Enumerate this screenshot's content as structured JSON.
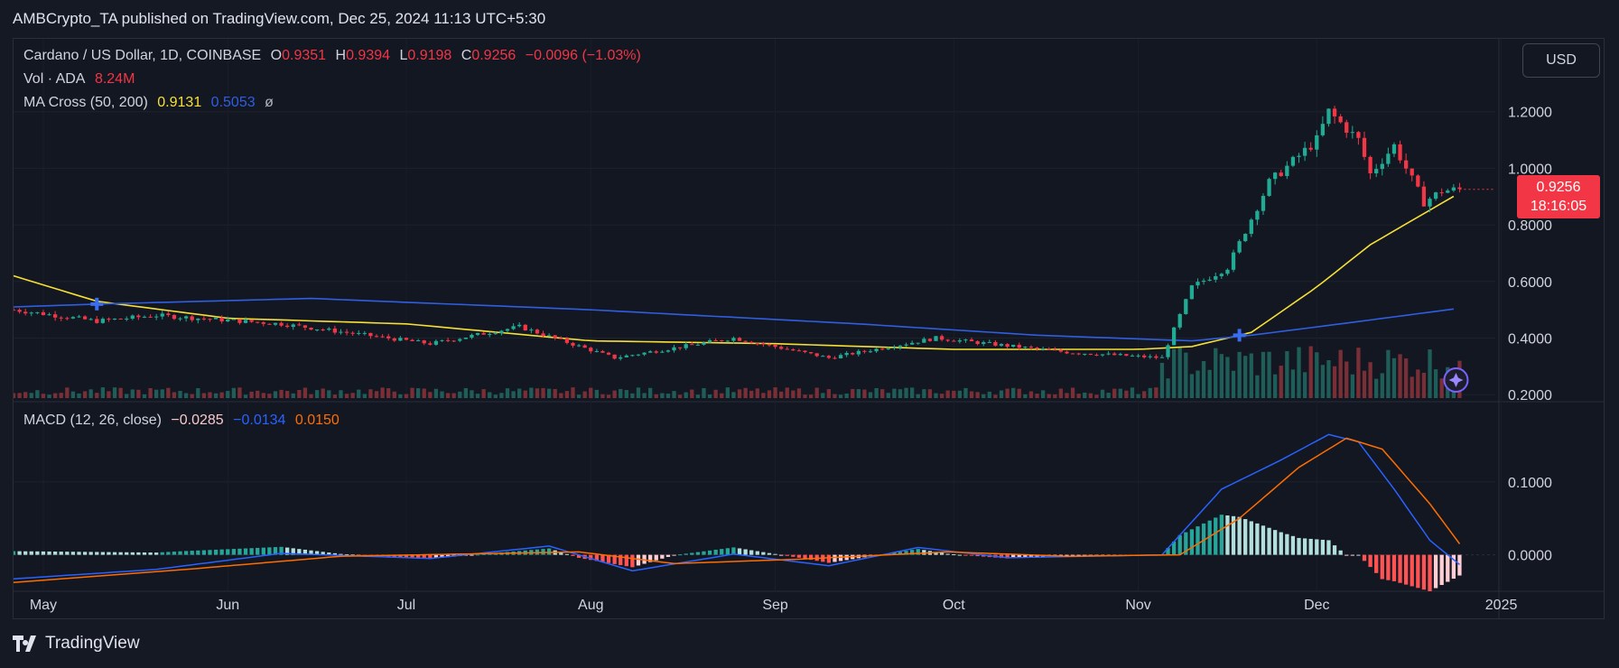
{
  "publisher_line": "AMBCrypto_TA published on TradingView.com, Dec 25, 2024 11:13 UTC+5:30",
  "header": {
    "symbol": "Cardano / US Dollar, 1D, COINBASE",
    "o_label": "O",
    "o_value": "0.9351",
    "h_label": "H",
    "h_value": "0.9394",
    "l_label": "L",
    "l_value": "0.9198",
    "c_label": "C",
    "c_value": "0.9256",
    "change": "−0.0096 (−1.03%)"
  },
  "volume_legend": {
    "label": "Vol · ADA",
    "value": "8.24M"
  },
  "ma_legend": {
    "label": "MA Cross (50, 200)",
    "ma50": "0.9131",
    "ma200": "0.5053",
    "symbol": "ø"
  },
  "macd_legend": {
    "label": "MACD (12, 26, close)",
    "hist": "−0.0285",
    "macd": "−0.0134",
    "signal": "0.0150"
  },
  "currency_button": "USD",
  "last_price": {
    "price": "0.9256",
    "countdown": "18:16:05"
  },
  "colors": {
    "up": "#22ab94",
    "down": "#f23645",
    "ma50": "#f7e034",
    "ma200": "#2f5fe0",
    "macd": "#2962ff",
    "signal": "#ff6d00",
    "hist_up": "#26a69a",
    "hist_down": "#ff5252"
  },
  "icons": {
    "cross_marker": "blue-cross-icon",
    "assistant": "sparkle-icon",
    "logo": "tradingview-logo-icon"
  },
  "branding": "TradingView",
  "chart_data": {
    "type": "candlestick",
    "title": "Cardano / US Dollar, 1D, COINBASE",
    "x_ticks": [
      "May",
      "Jun",
      "Jul",
      "Aug",
      "Sep",
      "Oct",
      "Nov",
      "Dec",
      "2025"
    ],
    "x_range": [
      "2024-04-26",
      "2024-12-31"
    ],
    "price_axis": {
      "ticks": [
        "1.2000",
        "1.0000",
        "0.8000",
        "0.6000",
        "0.4000",
        "0.2000"
      ],
      "range": [
        0.175,
        1.33
      ]
    },
    "macd_axis": {
      "ticks": [
        "0.1000",
        "0.0000"
      ],
      "range": [
        -0.05,
        0.21
      ]
    },
    "price_keypoints": [
      [
        "2024-04-26",
        0.5
      ],
      [
        "2024-05-10",
        0.46
      ],
      [
        "2024-05-20",
        0.48
      ],
      [
        "2024-06-10",
        0.45
      ],
      [
        "2024-07-05",
        0.38
      ],
      [
        "2024-07-20",
        0.44
      ],
      [
        "2024-08-05",
        0.33
      ],
      [
        "2024-08-25",
        0.4
      ],
      [
        "2024-09-10",
        0.33
      ],
      [
        "2024-09-28",
        0.4
      ],
      [
        "2024-10-20",
        0.35
      ],
      [
        "2024-11-05",
        0.33
      ],
      [
        "2024-11-10",
        0.58
      ],
      [
        "2024-11-16",
        0.65
      ],
      [
        "2024-11-23",
        0.95
      ],
      [
        "2024-12-01",
        1.1
      ],
      [
        "2024-12-03",
        1.2
      ],
      [
        "2024-12-08",
        1.1
      ],
      [
        "2024-12-10",
        0.98
      ],
      [
        "2024-12-14",
        1.08
      ],
      [
        "2024-12-19",
        0.88
      ],
      [
        "2024-12-22",
        0.92
      ],
      [
        "2024-12-25",
        0.9256
      ]
    ],
    "ma_series": [
      {
        "name": "MA 50",
        "points": [
          [
            "2024-04-26",
            0.62
          ],
          [
            "2024-05-10",
            0.53
          ],
          [
            "2024-06-01",
            0.47
          ],
          [
            "2024-07-01",
            0.45
          ],
          [
            "2024-08-01",
            0.39
          ],
          [
            "2024-09-01",
            0.38
          ],
          [
            "2024-10-01",
            0.36
          ],
          [
            "2024-11-01",
            0.36
          ],
          [
            "2024-11-10",
            0.37
          ],
          [
            "2024-11-20",
            0.42
          ],
          [
            "2024-12-01",
            0.58
          ],
          [
            "2024-12-10",
            0.73
          ],
          [
            "2024-12-25",
            0.9131
          ]
        ]
      },
      {
        "name": "MA 200",
        "points": [
          [
            "2024-04-26",
            0.51
          ],
          [
            "2024-05-10",
            0.52
          ],
          [
            "2024-06-15",
            0.54
          ],
          [
            "2024-08-01",
            0.5
          ],
          [
            "2024-09-15",
            0.45
          ],
          [
            "2024-10-15",
            0.41
          ],
          [
            "2024-11-10",
            0.39
          ],
          [
            "2024-11-20",
            0.41
          ],
          [
            "2024-12-05",
            0.45
          ],
          [
            "2024-12-25",
            0.5053
          ]
        ]
      }
    ],
    "crosses": [
      [
        "2024-05-10",
        0.52
      ],
      [
        "2024-11-18",
        0.41
      ]
    ],
    "macd_series": [
      {
        "name": "MACD",
        "points": [
          [
            "2024-04-26",
            -0.033
          ],
          [
            "2024-05-20",
            -0.02
          ],
          [
            "2024-06-10",
            0.002
          ],
          [
            "2024-07-05",
            -0.005
          ],
          [
            "2024-07-25",
            0.012
          ],
          [
            "2024-08-08",
            -0.022
          ],
          [
            "2024-08-25",
            0.001
          ],
          [
            "2024-09-10",
            -0.015
          ],
          [
            "2024-09-25",
            0.01
          ],
          [
            "2024-10-10",
            -0.004
          ],
          [
            "2024-11-05",
            0.0
          ],
          [
            "2024-11-15",
            0.09
          ],
          [
            "2024-11-25",
            0.13
          ],
          [
            "2024-12-03",
            0.165
          ],
          [
            "2024-12-08",
            0.155
          ],
          [
            "2024-12-14",
            0.09
          ],
          [
            "2024-12-20",
            0.02
          ],
          [
            "2024-12-25",
            -0.0134
          ]
        ]
      },
      {
        "name": "Signal",
        "points": [
          [
            "2024-04-26",
            -0.038
          ],
          [
            "2024-05-25",
            -0.02
          ],
          [
            "2024-06-20",
            -0.002
          ],
          [
            "2024-07-30",
            0.004
          ],
          [
            "2024-08-15",
            -0.012
          ],
          [
            "2024-09-05",
            -0.006
          ],
          [
            "2024-09-30",
            0.004
          ],
          [
            "2024-10-20",
            -0.002
          ],
          [
            "2024-11-08",
            0.0
          ],
          [
            "2024-11-18",
            0.05
          ],
          [
            "2024-11-28",
            0.12
          ],
          [
            "2024-12-06",
            0.16
          ],
          [
            "2024-12-12",
            0.145
          ],
          [
            "2024-12-20",
            0.07
          ],
          [
            "2024-12-25",
            0.015
          ]
        ]
      }
    ],
    "volume_note": "volume bars under price pane, taller in November–December"
  }
}
